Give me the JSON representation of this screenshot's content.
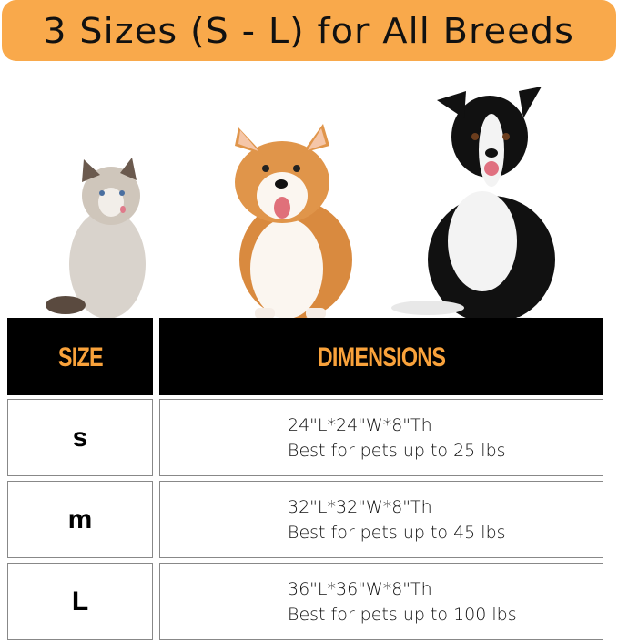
{
  "banner": {
    "title": "3 Sizes (S - L) for All Breeds",
    "color": "#f9a94b"
  },
  "pets": [
    {
      "name": "cat-image"
    },
    {
      "name": "corgi-image"
    },
    {
      "name": "border-collie-image"
    }
  ],
  "table": {
    "headers": {
      "size": "SIZE",
      "dimensions": "DIMENSIONS"
    },
    "rows": [
      {
        "size": "s",
        "dimensions": "24\"L*24\"W*8\"Th",
        "weight": "Best for pets up to 25 lbs"
      },
      {
        "size": "m",
        "dimensions": "32\"L*32\"W*8\"Th",
        "weight": "Best for pets up to 45 lbs"
      },
      {
        "size": "L",
        "dimensions": "36\"L*36\"W*8\"Th",
        "weight": "Best for pets up to 100 lbs"
      }
    ]
  }
}
